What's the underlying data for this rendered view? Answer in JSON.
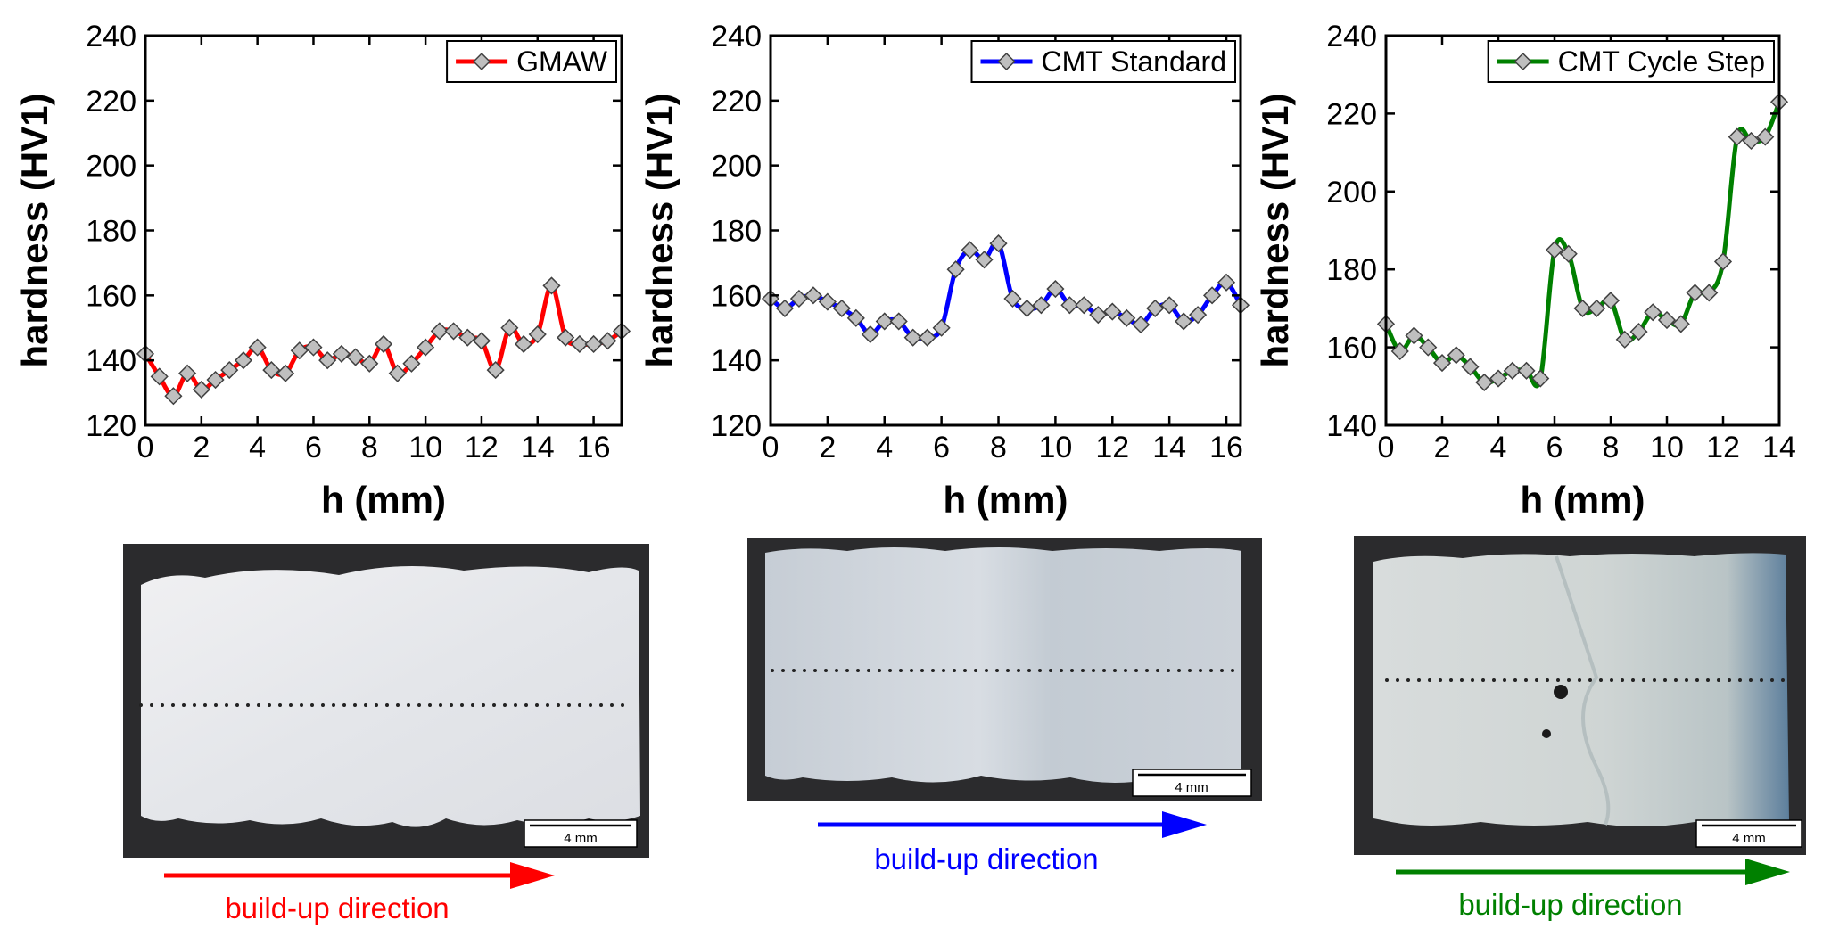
{
  "chart_data": [
    {
      "type": "line",
      "ylabel": "hardness (HV1)",
      "xlabel": "h (mm)",
      "xlim": [
        0,
        17
      ],
      "ylim": [
        120,
        240
      ],
      "xticks": [
        0,
        2,
        4,
        6,
        8,
        10,
        12,
        14,
        16
      ],
      "yticks": [
        120,
        140,
        160,
        180,
        200,
        220,
        240
      ],
      "grid": false,
      "legend_position": "top-right",
      "series": [
        {
          "name": "GMAW",
          "color": "#ff0000",
          "marker": "diamond",
          "x": [
            0,
            0.5,
            1,
            1.5,
            2,
            2.5,
            3,
            3.5,
            4,
            4.5,
            5,
            5.5,
            6,
            6.5,
            7,
            7.5,
            8,
            8.5,
            9,
            9.5,
            10,
            10.5,
            11,
            11.5,
            12,
            12.5,
            13,
            13.5,
            14,
            14.5,
            15,
            15.5,
            16,
            16.5,
            17
          ],
          "y": [
            142,
            135,
            129,
            136,
            131,
            134,
            137,
            140,
            144,
            137,
            136,
            143,
            144,
            140,
            142,
            141,
            139,
            145,
            136,
            139,
            144,
            149,
            149,
            147,
            146,
            137,
            150,
            145,
            148,
            163,
            147,
            145,
            145,
            146,
            149
          ]
        }
      ]
    },
    {
      "type": "line",
      "ylabel": "hardness (HV1)",
      "xlabel": "h (mm)",
      "xlim": [
        0,
        16.5
      ],
      "ylim": [
        120,
        240
      ],
      "xticks": [
        0,
        2,
        4,
        6,
        8,
        10,
        12,
        14,
        16
      ],
      "yticks": [
        120,
        140,
        160,
        180,
        200,
        220,
        240
      ],
      "grid": false,
      "legend_position": "top-right",
      "series": [
        {
          "name": "CMT Standard",
          "color": "#0000ff",
          "marker": "diamond",
          "x": [
            0,
            0.5,
            1,
            1.5,
            2,
            2.5,
            3,
            3.5,
            4,
            4.5,
            5,
            5.5,
            6,
            6.5,
            7,
            7.5,
            8,
            8.5,
            9,
            9.5,
            10,
            10.5,
            11,
            11.5,
            12,
            12.5,
            13,
            13.5,
            14,
            14.5,
            15,
            15.5,
            16,
            16.5
          ],
          "y": [
            159,
            156,
            159,
            160,
            158,
            156,
            153,
            148,
            152,
            152,
            147,
            147,
            150,
            168,
            174,
            171,
            176,
            159,
            156,
            157,
            162,
            157,
            157,
            154,
            155,
            153,
            151,
            156,
            157,
            152,
            154,
            160,
            164,
            157
          ]
        }
      ]
    },
    {
      "type": "line",
      "ylabel": "hardness (HV1)",
      "xlabel": "h (mm)",
      "xlim": [
        0,
        14
      ],
      "ylim": [
        140,
        240
      ],
      "xticks": [
        0,
        2,
        4,
        6,
        8,
        10,
        12,
        14
      ],
      "yticks": [
        140,
        160,
        180,
        200,
        220,
        240
      ],
      "grid": false,
      "legend_position": "top-right",
      "series": [
        {
          "name": "CMT Cycle Step",
          "color": "#008000",
          "marker": "diamond",
          "x": [
            0,
            0.5,
            1,
            1.5,
            2,
            2.5,
            3,
            3.5,
            4,
            4.5,
            5,
            5.5,
            6,
            6.5,
            7,
            7.5,
            8,
            8.5,
            9,
            9.5,
            10,
            10.5,
            11,
            11.5,
            12,
            12.5,
            13,
            13.5,
            14
          ],
          "y": [
            166,
            159,
            163,
            160,
            156,
            158,
            155,
            151,
            152,
            154,
            154,
            152,
            185,
            184,
            170,
            170,
            172,
            162,
            164,
            169,
            167,
            166,
            174,
            174,
            182,
            214,
            213,
            214,
            223
          ]
        }
      ]
    }
  ],
  "micrographs": [
    {
      "scale_label": "4 mm",
      "direction_label": "build-up direction",
      "direction_color": "#ff0000"
    },
    {
      "scale_label": "4 mm",
      "direction_label": "build-up direction",
      "direction_color": "#0000ff"
    },
    {
      "scale_label": "4 mm",
      "direction_label": "build-up direction",
      "direction_color": "#008000"
    }
  ]
}
